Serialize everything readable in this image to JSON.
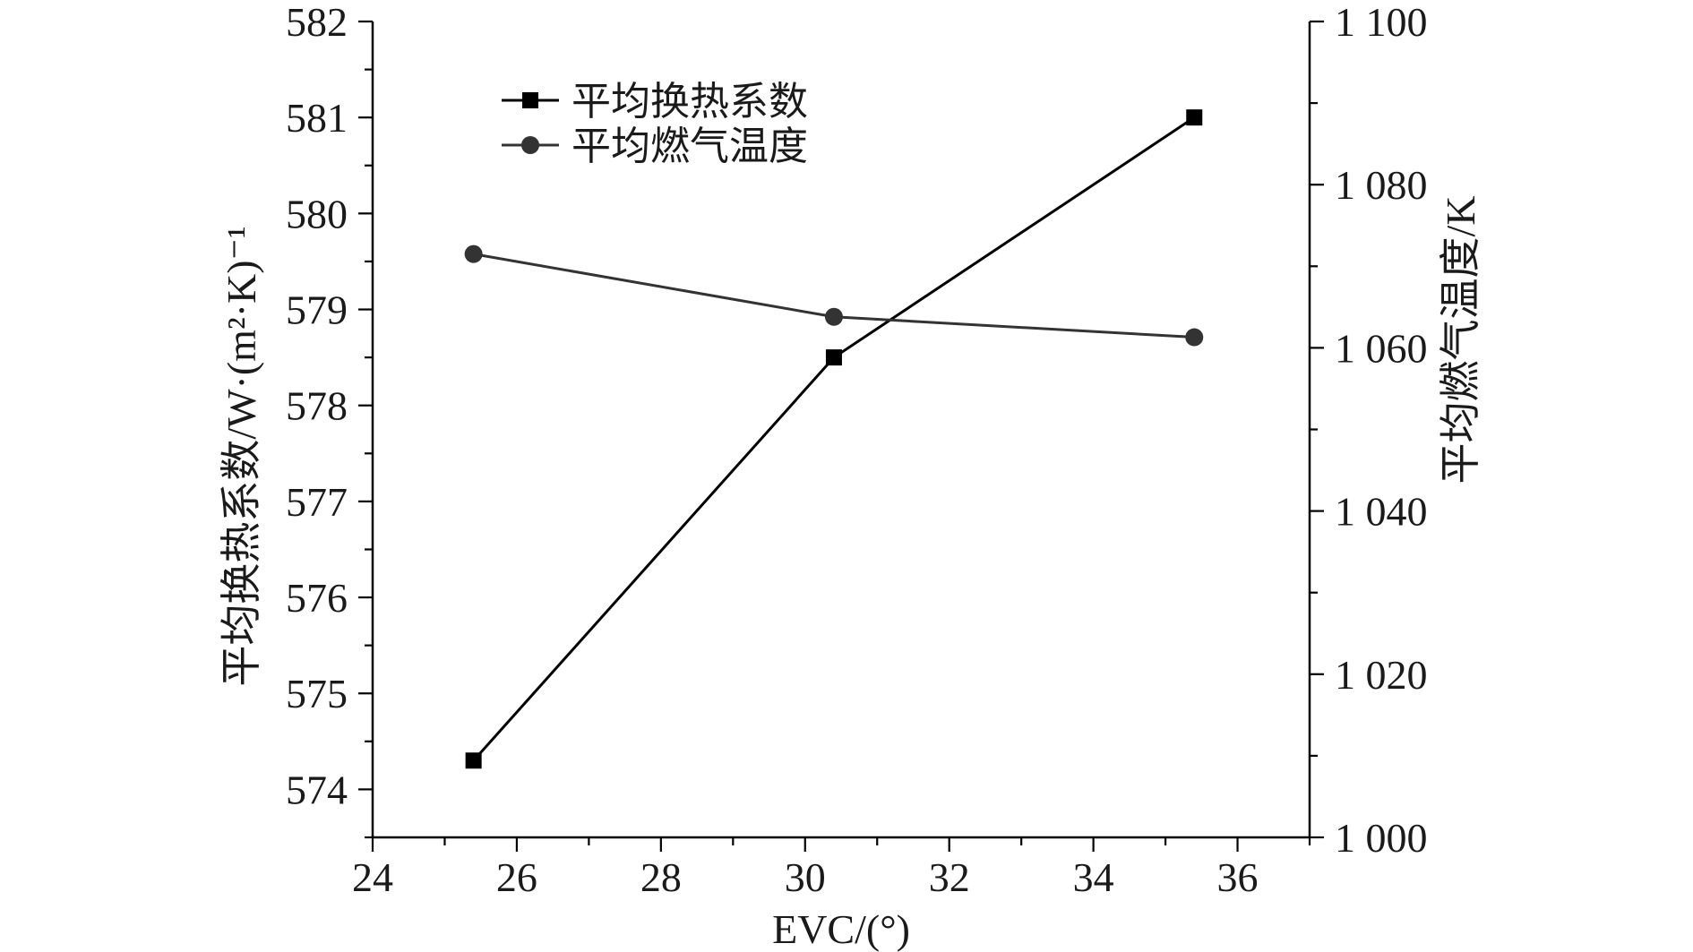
{
  "chart_data": {
    "type": "line",
    "xlabel": "EVC/(°)",
    "ylabel_left": "平均换热系数/W·(m²·K)⁻¹",
    "ylabel_right": "平均燃气温度/K",
    "xlim": [
      24,
      37
    ],
    "ylim_left": [
      573.5,
      582
    ],
    "ylim_right": [
      1000,
      1100
    ],
    "x_ticks": [
      24,
      26,
      28,
      30,
      32,
      34,
      36
    ],
    "x_tick_labels": [
      "24",
      "26",
      "28",
      "30",
      "32",
      "34",
      "36"
    ],
    "y_left_ticks": [
      574,
      575,
      576,
      577,
      578,
      579,
      580,
      581,
      582
    ],
    "y_left_tick_labels": [
      "574",
      "575",
      "576",
      "577",
      "578",
      "579",
      "580",
      "581",
      "582"
    ],
    "y_right_ticks": [
      1000,
      1020,
      1040,
      1060,
      1080,
      1100
    ],
    "y_right_tick_labels": [
      "1 000",
      "1 020",
      "1 040",
      "1 060",
      "1 080",
      "1 100"
    ],
    "legend_position": "top-left",
    "grid": false,
    "series": [
      {
        "name": "平均换热系数",
        "axis": "left",
        "marker": "square",
        "color": "#000000",
        "x": [
          25.4,
          30.4,
          35.4
        ],
        "y": [
          574.3,
          578.5,
          581.0
        ]
      },
      {
        "name": "平均燃气温度",
        "axis": "right",
        "marker": "circle",
        "color": "#333333",
        "x": [
          25.4,
          30.4,
          35.4
        ],
        "y": [
          1071.5,
          1063.8,
          1061.3
        ]
      }
    ]
  }
}
